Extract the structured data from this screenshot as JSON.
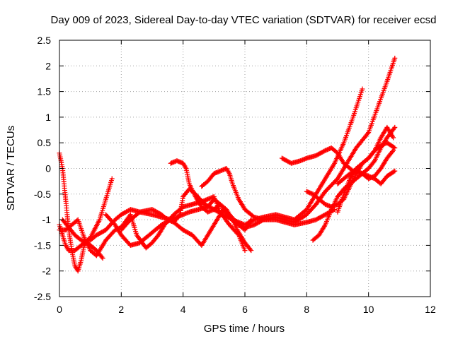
{
  "chart_data": {
    "type": "scatter",
    "title": "Day 009 of 2023, Sidereal Day-to-day VTEC variation (SDTVAR) for receiver ecsd",
    "xlabel": "GPS time / hours",
    "ylabel": "SDTVAR / TECUs",
    "xlim": [
      0,
      12
    ],
    "ylim": [
      -2.5,
      2.5
    ],
    "xticks": [
      "0",
      "2",
      "4",
      "6",
      "8",
      "10",
      "12"
    ],
    "yticks": [
      "-2.5",
      "-2",
      "-1.5",
      "-1",
      "-0.5",
      "0",
      "0.5",
      "1",
      "1.5",
      "2",
      "2.5"
    ],
    "grid": true,
    "legend": "none",
    "marker": "+",
    "marker_color": "#ff0000",
    "series": [
      {
        "x": [
          0.0,
          0.1,
          0.2,
          0.3,
          0.4,
          0.5,
          0.6,
          0.7,
          0.8,
          0.9,
          1.0,
          1.2,
          1.5,
          1.8,
          2.0,
          2.3,
          2.6,
          3.0,
          3.3,
          3.6,
          4.0,
          4.3,
          4.6,
          5.0,
          5.3,
          5.6,
          6.0,
          6.2
        ],
        "y": [
          0.3,
          0.0,
          -0.6,
          -1.2,
          -1.6,
          -1.9,
          -2.0,
          -1.8,
          -1.5,
          -1.4,
          -1.4,
          -1.3,
          -1.2,
          -1.0,
          -0.9,
          -0.8,
          -0.85,
          -0.9,
          -0.95,
          -1.0,
          -1.2,
          -1.3,
          -1.5,
          -1.1,
          -0.8,
          -1.0,
          -1.2,
          -1.0
        ]
      },
      {
        "x": [
          0.0,
          0.1,
          0.2,
          0.3,
          0.5,
          0.7,
          1.0,
          1.3,
          1.5,
          1.7
        ],
        "y": [
          -1.1,
          -1.3,
          -1.5,
          -1.6,
          -1.6,
          -1.5,
          -1.35,
          -1.0,
          -0.6,
          -0.2
        ]
      },
      {
        "x": [
          0.0,
          0.2,
          0.4,
          0.6,
          0.8,
          1.0,
          1.2,
          1.5,
          1.8,
          2.0,
          2.3,
          2.5,
          2.8,
          3.0,
          3.2,
          3.4,
          3.7,
          4.0,
          4.3,
          4.6,
          5.0,
          5.2,
          5.5,
          5.8,
          6.0
        ],
        "y": [
          -1.2,
          -1.2,
          -1.1,
          -1.0,
          -1.35,
          -1.6,
          -1.7,
          -1.4,
          -1.2,
          -1.15,
          -0.9,
          -1.3,
          -1.55,
          -1.45,
          -1.3,
          -1.1,
          -0.9,
          -0.75,
          -0.7,
          -0.65,
          -0.55,
          -0.85,
          -1.1,
          -1.3,
          -1.6
        ]
      },
      {
        "x": [
          0.1,
          0.3,
          0.5,
          0.7,
          0.9,
          1.0,
          1.2,
          1.4
        ],
        "y": [
          -1.0,
          -1.15,
          -1.3,
          -1.4,
          -1.45,
          -1.5,
          -1.6,
          -1.75
        ]
      },
      {
        "x": [
          1.5,
          1.8,
          2.0,
          2.3,
          2.6,
          3.0,
          3.3,
          3.6,
          3.8,
          4.0,
          4.2,
          4.5,
          4.8,
          5.0,
          5.2,
          5.5,
          5.8,
          6.0,
          6.3,
          6.6,
          7.0,
          7.3,
          7.6,
          8.0,
          8.3,
          8.6,
          9.0,
          9.3,
          9.6,
          10.0,
          10.3,
          10.6,
          10.85
        ],
        "y": [
          -0.9,
          -1.1,
          -1.3,
          -1.5,
          -1.45,
          -1.25,
          -1.1,
          -1.0,
          -0.95,
          -0.9,
          -0.85,
          -0.8,
          -0.75,
          -0.6,
          -0.7,
          -0.9,
          -1.1,
          -1.15,
          -1.1,
          -1.0,
          -0.95,
          -1.0,
          -1.05,
          -0.9,
          -0.7,
          -0.45,
          -0.2,
          0.1,
          0.4,
          0.7,
          1.2,
          1.7,
          2.15
        ]
      },
      {
        "x": [
          2.0,
          2.3,
          2.6,
          3.0,
          3.3,
          3.5,
          3.7,
          3.9,
          4.0,
          4.2,
          4.4,
          4.7,
          5.0,
          5.3,
          5.6,
          6.0,
          6.3,
          6.6,
          7.0,
          7.3,
          7.6,
          8.0,
          8.3,
          8.6,
          8.9,
          9.2,
          9.5,
          9.8
        ],
        "y": [
          -1.2,
          -1.0,
          -0.85,
          -0.8,
          -0.9,
          -1.0,
          -1.05,
          -0.9,
          -0.55,
          -0.4,
          -0.5,
          -0.7,
          -0.8,
          -0.9,
          -1.0,
          -1.1,
          -1.0,
          -0.95,
          -0.9,
          -0.95,
          -1.0,
          -0.8,
          -0.5,
          -0.2,
          0.1,
          0.5,
          1.0,
          1.55
        ]
      },
      {
        "x": [
          3.6,
          3.8,
          4.0,
          4.1,
          4.2,
          4.4,
          4.6,
          4.8,
          5.0,
          5.2,
          5.4,
          5.6,
          5.8,
          6.0,
          6.2
        ],
        "y": [
          0.1,
          0.15,
          0.1,
          0.0,
          -0.3,
          -0.55,
          -0.75,
          -0.85,
          -0.8,
          -0.7,
          -0.8,
          -1.0,
          -1.25,
          -1.45,
          -1.6
        ]
      },
      {
        "x": [
          4.6,
          4.8,
          5.0,
          5.2,
          5.4,
          5.5,
          5.6,
          5.8,
          6.0,
          6.3,
          6.6,
          7.0,
          7.3,
          7.6,
          8.0,
          8.3,
          8.6,
          8.9
        ],
        "y": [
          -0.35,
          -0.25,
          -0.1,
          -0.05,
          0.0,
          -0.1,
          -0.3,
          -0.6,
          -0.8,
          -0.95,
          -1.0,
          -1.0,
          -1.05,
          -1.1,
          -1.05,
          -1.0,
          -0.9,
          -0.8
        ]
      },
      {
        "x": [
          7.2,
          7.5,
          7.8,
          8.0,
          8.3,
          8.6,
          8.8,
          9.0,
          9.2,
          9.5,
          9.8,
          10.0,
          10.2,
          10.4,
          10.6,
          10.85
        ],
        "y": [
          0.2,
          0.1,
          0.15,
          0.2,
          0.25,
          0.35,
          0.4,
          0.3,
          0.1,
          -0.05,
          -0.1,
          -0.15,
          -0.2,
          -0.3,
          -0.15,
          -0.05
        ]
      },
      {
        "x": [
          8.0,
          8.2,
          8.4,
          8.6,
          8.8,
          9.0,
          9.2,
          9.4,
          9.6,
          9.8,
          10.0,
          10.2,
          10.4,
          10.6,
          10.85
        ],
        "y": [
          -0.45,
          -0.5,
          -0.6,
          -0.7,
          -0.75,
          -0.7,
          -0.6,
          -0.35,
          -0.1,
          0.1,
          0.2,
          0.35,
          0.45,
          0.5,
          0.4
        ]
      },
      {
        "x": [
          8.2,
          8.4,
          8.6,
          8.8,
          9.0,
          9.2,
          9.4,
          9.6,
          9.8,
          10.0,
          10.2,
          10.4,
          10.6,
          10.85
        ],
        "y": [
          -1.4,
          -1.3,
          -1.1,
          -0.8,
          -0.55,
          -0.4,
          -0.3,
          -0.2,
          -0.1,
          0.0,
          0.15,
          0.4,
          0.6,
          0.8
        ]
      },
      {
        "x": [
          9.0,
          9.2,
          9.4,
          9.6,
          9.8,
          10.0,
          10.2,
          10.4,
          10.6,
          10.8
        ],
        "y": [
          -0.85,
          -0.5,
          -0.2,
          0.0,
          0.1,
          0.2,
          0.35,
          0.6,
          0.8,
          0.6
        ]
      },
      {
        "x": [
          9.0,
          9.2,
          9.4,
          9.6,
          9.8,
          10.0,
          10.2,
          10.4,
          10.6,
          10.8
        ],
        "y": [
          -0.3,
          -0.2,
          -0.1,
          -0.05,
          -0.1,
          -0.2,
          -0.15,
          0.0,
          0.2,
          0.35
        ]
      }
    ]
  }
}
